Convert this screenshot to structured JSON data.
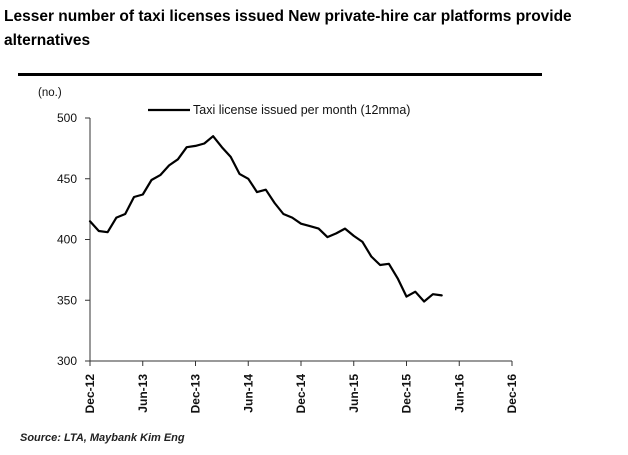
{
  "header": {
    "title": "Lesser number of taxi licenses issued New private-hire car platforms provide alternatives"
  },
  "footer": {
    "source": "Source: LTA, Maybank Kim Eng"
  },
  "chart_data": {
    "type": "line",
    "unit_label": "(no.)",
    "ylim": [
      300,
      500
    ],
    "yticks": [
      500,
      450,
      400,
      350,
      300
    ],
    "xlim": [
      0,
      48
    ],
    "x_tick_labels": [
      "Dec-12",
      "Jun-13",
      "Dec-13",
      "Jun-14",
      "Dec-14",
      "Jun-15",
      "Dec-15",
      "Jun-16",
      "Dec-16"
    ],
    "x_tick_positions": [
      0,
      6,
      12,
      18,
      24,
      30,
      36,
      42,
      48
    ],
    "legend_position": "top-right",
    "grid": false,
    "series_color": "#000000",
    "series": [
      {
        "name": "Taxi license issued per month (12mma)",
        "x": [
          0,
          1,
          2,
          3,
          4,
          5,
          6,
          7,
          8,
          9,
          10,
          11,
          12,
          13,
          14,
          15,
          16,
          17,
          18,
          19,
          20,
          21,
          22,
          23,
          24,
          25,
          26,
          27,
          28,
          29,
          30,
          31,
          32,
          33,
          34,
          35,
          36,
          37,
          38,
          39,
          40
        ],
        "values": [
          415,
          407,
          406,
          418,
          421,
          435,
          437,
          449,
          453,
          461,
          466,
          476,
          477,
          479,
          485,
          476,
          468,
          454,
          450,
          439,
          441,
          430,
          421,
          418,
          413,
          411,
          409,
          402,
          405,
          409,
          403,
          398,
          386,
          379,
          380,
          368,
          353,
          357,
          349,
          355,
          354
        ]
      }
    ]
  }
}
